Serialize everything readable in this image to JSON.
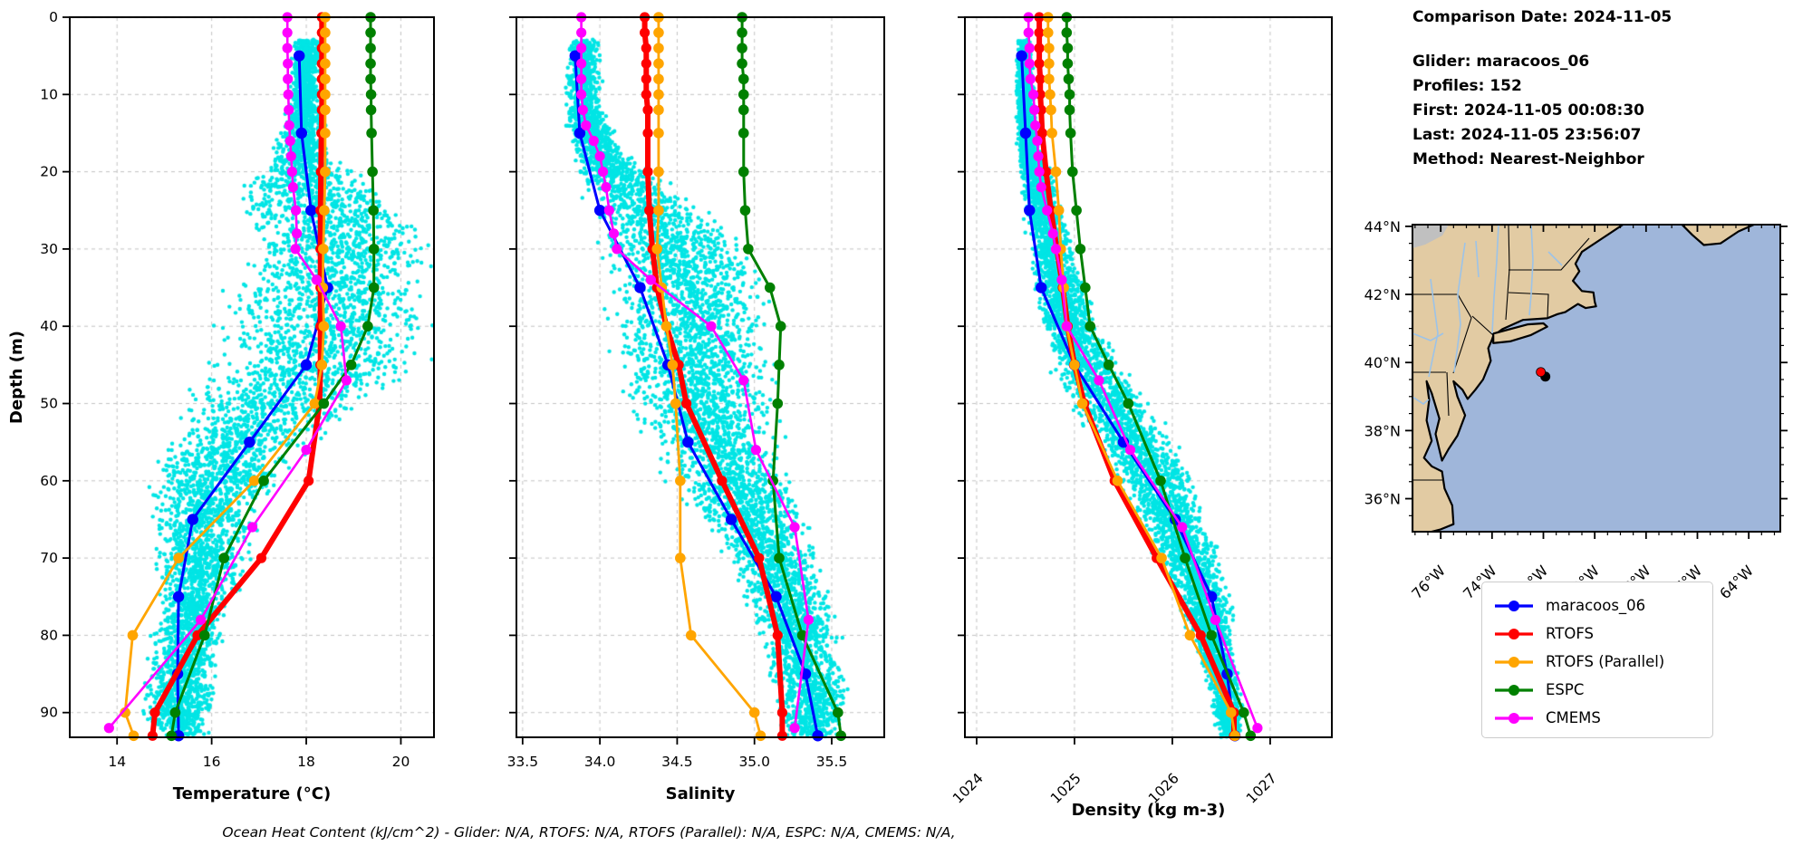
{
  "info_panel": {
    "comparison_date": "Comparison Date: 2024-11-05",
    "glider": "Glider: maracoos_06",
    "profiles": "Profiles: 152",
    "first": "First: 2024-11-05 00:08:30",
    "last": "Last: 2024-11-05 23:56:07",
    "method": "Method: Nearest-Neighbor"
  },
  "footer": "Ocean Heat Content (kJ/cm^2) - Glider: N/A,  RTOFS: N/A,  RTOFS (Parallel): N/A,  ESPC: N/A,  CMEMS: N/A,",
  "legend": {
    "items": [
      {
        "label": "maracoos_06",
        "color": "#0000ff"
      },
      {
        "label": "RTOFS",
        "color": "#ff0000"
      },
      {
        "label": "RTOFS (Parallel)",
        "color": "#ffa500"
      },
      {
        "label": "ESPC",
        "color": "#008000"
      },
      {
        "label": "CMEMS",
        "color": "#ff00ff"
      }
    ]
  },
  "colors": {
    "glider": "#0000ff",
    "rtofs": "#ff0000",
    "rtofs_parallel": "#ffa500",
    "espc": "#008000",
    "cmems": "#ff00ff",
    "scatter": "#00e5e5",
    "grid": "#c3c3c3",
    "land": "#e2cba3",
    "ocean": "#9fb6da",
    "lake_gray": "#c0c0c0",
    "river": "#9cc3e8"
  },
  "map": {
    "lat_tick_labels": [
      "44°N",
      "42°N",
      "40°N",
      "38°N",
      "36°N"
    ],
    "lat_tick_values": [
      44,
      42,
      40,
      38,
      36
    ],
    "lon_tick_labels": [
      "76°W",
      "74°W",
      "72°W",
      "70°W",
      "68°W",
      "66°W",
      "64°W"
    ],
    "lon_tick_values": [
      -76,
      -74,
      -72,
      -70,
      -68,
      -66,
      -64
    ],
    "extent": {
      "lon_min": -77.1,
      "lon_max": -62.77,
      "lat_min": 35.03,
      "lat_max": 44.05
    },
    "glider_marker": {
      "lon": -72.1,
      "lat": 39.72
    }
  },
  "chart_data": [
    {
      "type": "scatter",
      "xlabel": "Temperature (°C)",
      "ylabel": "Depth (m)",
      "xlim": [
        13.0,
        20.7
      ],
      "ylim": [
        0,
        93.2
      ],
      "xticks": [
        14,
        16,
        18,
        20
      ],
      "xtick_labels": [
        "14",
        "16",
        "18",
        "20"
      ],
      "yticks": [
        0,
        10,
        20,
        30,
        40,
        50,
        60,
        70,
        80,
        90
      ],
      "ytick_labels": [
        "0",
        "10",
        "20",
        "30",
        "40",
        "50",
        "60",
        "70",
        "80",
        "90"
      ],
      "rotate_xticks": false,
      "grid": true,
      "scatter_envelope": [
        [
          3,
          17.7,
          18.25
        ],
        [
          12,
          17.55,
          18.25
        ],
        [
          18,
          17.2,
          18.4
        ],
        [
          22,
          16.2,
          19.4
        ],
        [
          26,
          16.4,
          20.0
        ],
        [
          30,
          16.6,
          20.3
        ],
        [
          35,
          16.0,
          20.3
        ],
        [
          40,
          15.8,
          20.25
        ],
        [
          45,
          15.6,
          20.0
        ],
        [
          48,
          15.3,
          19.5
        ],
        [
          52,
          15.0,
          18.6
        ],
        [
          56,
          14.7,
          17.8
        ],
        [
          60,
          14.5,
          17.2
        ],
        [
          65,
          14.6,
          16.8
        ],
        [
          70,
          14.7,
          16.6
        ],
        [
          75,
          14.75,
          16.4
        ],
        [
          80,
          14.6,
          16.1
        ],
        [
          85,
          14.5,
          16.0
        ],
        [
          90,
          14.4,
          16.0
        ],
        [
          93,
          14.8,
          15.8
        ]
      ],
      "series": [
        {
          "name": "maracoos_06",
          "depths": [
            5,
            15,
            25,
            35,
            45,
            55,
            65,
            75,
            85,
            93
          ],
          "values": [
            17.85,
            17.9,
            18.1,
            18.45,
            18.0,
            16.8,
            15.6,
            15.3,
            15.28,
            15.3
          ]
        },
        {
          "name": "RTOFS",
          "depths": [
            0,
            2,
            4,
            6,
            8,
            10,
            12,
            15,
            20,
            25,
            30,
            35,
            40,
            45,
            50,
            60,
            70,
            80,
            90,
            93
          ],
          "values": [
            18.33,
            18.33,
            18.33,
            18.33,
            18.33,
            18.33,
            18.33,
            18.32,
            18.31,
            18.3,
            18.3,
            18.3,
            18.3,
            18.3,
            18.28,
            18.05,
            17.05,
            15.7,
            14.8,
            14.75
          ]
        },
        {
          "name": "RTOFS (Parallel)",
          "depths": [
            0,
            2,
            4,
            6,
            8,
            10,
            12,
            15,
            20,
            25,
            30,
            35,
            40,
            45,
            50,
            60,
            70,
            80,
            90,
            93
          ],
          "values": [
            18.4,
            18.4,
            18.4,
            18.4,
            18.4,
            18.4,
            18.4,
            18.4,
            18.4,
            18.38,
            18.36,
            18.35,
            18.37,
            18.33,
            18.18,
            16.9,
            15.3,
            14.33,
            14.17,
            14.35
          ]
        },
        {
          "name": "ESPC",
          "depths": [
            0,
            2,
            4,
            6,
            8,
            10,
            12,
            15,
            20,
            25,
            30,
            35,
            40,
            45,
            50,
            60,
            70,
            80,
            90,
            93
          ],
          "values": [
            19.36,
            19.36,
            19.36,
            19.36,
            19.36,
            19.37,
            19.37,
            19.38,
            19.4,
            19.42,
            19.43,
            19.43,
            19.3,
            18.95,
            18.37,
            17.1,
            16.26,
            15.85,
            15.23,
            15.15
          ]
        },
        {
          "name": "CMEMS",
          "depths": [
            0,
            2,
            4,
            6,
            8,
            10,
            12,
            14,
            16,
            18,
            20,
            22,
            25,
            28,
            30,
            34,
            40,
            47,
            56,
            66,
            78,
            92
          ],
          "values": [
            17.6,
            17.6,
            17.6,
            17.61,
            17.61,
            17.62,
            17.63,
            17.64,
            17.66,
            17.68,
            17.7,
            17.72,
            17.78,
            17.8,
            17.77,
            18.22,
            18.73,
            18.85,
            18.0,
            16.86,
            15.77,
            13.83
          ]
        }
      ]
    },
    {
      "type": "scatter",
      "xlabel": "Salinity",
      "ylabel": "",
      "xlim": [
        33.46,
        35.84
      ],
      "ylim": [
        0,
        93.2
      ],
      "xticks": [
        33.5,
        34.0,
        34.5,
        35.0,
        35.5
      ],
      "xtick_labels": [
        "33.5",
        "34.0",
        "34.5",
        "35.0",
        "35.5"
      ],
      "yticks": [
        0,
        10,
        20,
        30,
        40,
        50,
        60,
        70,
        80,
        90
      ],
      "ytick_labels": [],
      "rotate_xticks": false,
      "grid": true,
      "scatter_envelope": [
        [
          3,
          33.78,
          33.98
        ],
        [
          12,
          33.75,
          34.0
        ],
        [
          18,
          33.8,
          34.15
        ],
        [
          22,
          33.85,
          34.45
        ],
        [
          25,
          33.9,
          34.6
        ],
        [
          30,
          33.95,
          34.9
        ],
        [
          35,
          34.0,
          35.0
        ],
        [
          40,
          34.0,
          35.05
        ],
        [
          45,
          34.05,
          35.05
        ],
        [
          50,
          34.1,
          35.05
        ],
        [
          55,
          34.25,
          35.1
        ],
        [
          60,
          34.4,
          35.2
        ],
        [
          65,
          34.6,
          35.3
        ],
        [
          70,
          34.75,
          35.35
        ],
        [
          75,
          34.9,
          35.45
        ],
        [
          80,
          35.0,
          35.5
        ],
        [
          85,
          35.05,
          35.55
        ],
        [
          88,
          35.1,
          35.6
        ],
        [
          93,
          35.15,
          35.5
        ]
      ],
      "series": [
        {
          "name": "maracoos_06",
          "depths": [
            5,
            15,
            25,
            35,
            45,
            55,
            65,
            75,
            85,
            93
          ],
          "values": [
            33.84,
            33.87,
            34.0,
            34.26,
            34.44,
            34.57,
            34.85,
            35.14,
            35.33,
            35.41
          ]
        },
        {
          "name": "RTOFS",
          "depths": [
            0,
            2,
            4,
            6,
            8,
            10,
            12,
            15,
            20,
            25,
            30,
            35,
            40,
            45,
            50,
            60,
            70,
            80,
            90,
            93
          ],
          "values": [
            34.29,
            34.29,
            34.3,
            34.3,
            34.3,
            34.3,
            34.31,
            34.31,
            34.31,
            34.32,
            34.34,
            34.37,
            34.43,
            34.51,
            34.56,
            34.79,
            35.03,
            35.15,
            35.18,
            35.18
          ]
        },
        {
          "name": "RTOFS (Parallel)",
          "depths": [
            0,
            2,
            4,
            6,
            8,
            10,
            12,
            15,
            20,
            25,
            30,
            35,
            40,
            45,
            50,
            60,
            70,
            80,
            90,
            93
          ],
          "values": [
            34.38,
            34.38,
            34.38,
            34.38,
            34.38,
            34.38,
            34.38,
            34.38,
            34.38,
            34.38,
            34.37,
            34.4,
            34.43,
            34.47,
            34.49,
            34.52,
            34.52,
            34.59,
            35.0,
            35.04
          ]
        },
        {
          "name": "ESPC",
          "depths": [
            0,
            2,
            4,
            6,
            8,
            10,
            12,
            15,
            20,
            25,
            30,
            35,
            40,
            45,
            50,
            60,
            70,
            80,
            90,
            93
          ],
          "values": [
            34.92,
            34.92,
            34.92,
            34.92,
            34.93,
            34.93,
            34.93,
            34.93,
            34.93,
            34.94,
            34.96,
            35.1,
            35.17,
            35.16,
            35.15,
            35.12,
            35.16,
            35.31,
            35.54,
            35.56
          ]
        },
        {
          "name": "CMEMS",
          "depths": [
            0,
            2,
            4,
            6,
            8,
            10,
            12,
            14,
            16,
            18,
            20,
            22,
            25,
            28,
            30,
            34,
            40,
            47,
            56,
            66,
            78,
            92
          ],
          "values": [
            33.88,
            33.88,
            33.88,
            33.88,
            33.88,
            33.88,
            33.89,
            33.91,
            33.96,
            34.0,
            34.02,
            34.04,
            34.06,
            34.09,
            34.11,
            34.33,
            34.72,
            34.93,
            35.01,
            35.26,
            35.35,
            35.26
          ]
        }
      ]
    },
    {
      "type": "scatter",
      "xlabel": "Density (kg m-3)",
      "ylabel": "",
      "xlim": [
        1023.88,
        1027.63
      ],
      "ylim": [
        0,
        93.2
      ],
      "xticks": [
        1024,
        1025,
        1026,
        1027
      ],
      "xtick_labels": [
        "1024",
        "1025",
        "1026",
        "1027"
      ],
      "yticks": [
        0,
        10,
        20,
        30,
        40,
        50,
        60,
        70,
        80,
        90
      ],
      "ytick_labels": [],
      "rotate_xticks": true,
      "grid": true,
      "scatter_envelope": [
        [
          3,
          1024.4,
          1024.55
        ],
        [
          12,
          1024.38,
          1024.58
        ],
        [
          18,
          1024.4,
          1024.65
        ],
        [
          22,
          1024.42,
          1024.8
        ],
        [
          25,
          1024.45,
          1024.85
        ],
        [
          30,
          1024.5,
          1024.95
        ],
        [
          35,
          1024.55,
          1025.05
        ],
        [
          40,
          1024.6,
          1025.2
        ],
        [
          45,
          1024.7,
          1025.45
        ],
        [
          50,
          1024.9,
          1025.7
        ],
        [
          55,
          1025.15,
          1025.95
        ],
        [
          60,
          1025.4,
          1026.15
        ],
        [
          65,
          1025.6,
          1026.3
        ],
        [
          70,
          1025.8,
          1026.45
        ],
        [
          75,
          1026.0,
          1026.55
        ],
        [
          80,
          1026.15,
          1026.6
        ],
        [
          85,
          1026.3,
          1026.65
        ],
        [
          90,
          1026.4,
          1026.7
        ],
        [
          93,
          1026.45,
          1026.7
        ]
      ],
      "series": [
        {
          "name": "maracoos_06",
          "depths": [
            5,
            15,
            25,
            35,
            45,
            55,
            65,
            75,
            85,
            93
          ],
          "values": [
            1024.46,
            1024.5,
            1024.54,
            1024.66,
            1025.0,
            1025.5,
            1026.03,
            1026.4,
            1026.56,
            1026.64
          ]
        },
        {
          "name": "RTOFS",
          "depths": [
            0,
            2,
            4,
            6,
            8,
            10,
            12,
            15,
            20,
            25,
            30,
            35,
            40,
            45,
            50,
            60,
            70,
            80,
            90,
            93
          ],
          "values": [
            1024.64,
            1024.64,
            1024.64,
            1024.64,
            1024.65,
            1024.65,
            1024.66,
            1024.67,
            1024.71,
            1024.76,
            1024.82,
            1024.88,
            1024.93,
            1025.0,
            1025.1,
            1025.41,
            1025.84,
            1026.29,
            1026.63,
            1026.63
          ]
        },
        {
          "name": "RTOFS (Parallel)",
          "depths": [
            0,
            2,
            4,
            6,
            8,
            10,
            12,
            15,
            20,
            25,
            30,
            35,
            40,
            45,
            50,
            60,
            70,
            80,
            90,
            93
          ],
          "values": [
            1024.73,
            1024.73,
            1024.74,
            1024.74,
            1024.74,
            1024.75,
            1024.76,
            1024.77,
            1024.81,
            1024.84,
            1024.86,
            1024.89,
            1024.92,
            1025.0,
            1025.08,
            1025.44,
            1025.89,
            1026.18,
            1026.6,
            1026.64
          ]
        },
        {
          "name": "ESPC",
          "depths": [
            0,
            2,
            4,
            6,
            8,
            10,
            12,
            15,
            20,
            25,
            30,
            35,
            40,
            45,
            50,
            60,
            70,
            80,
            90,
            93
          ],
          "values": [
            1024.92,
            1024.92,
            1024.93,
            1024.93,
            1024.94,
            1024.95,
            1024.95,
            1024.96,
            1024.98,
            1025.02,
            1025.06,
            1025.11,
            1025.16,
            1025.35,
            1025.55,
            1025.88,
            1026.13,
            1026.4,
            1026.73,
            1026.8
          ]
        },
        {
          "name": "CMEMS",
          "depths": [
            0,
            2,
            4,
            6,
            8,
            10,
            12,
            14,
            16,
            18,
            20,
            22,
            25,
            28,
            30,
            34,
            40,
            47,
            56,
            66,
            78,
            92
          ],
          "values": [
            1024.53,
            1024.53,
            1024.54,
            1024.54,
            1024.55,
            1024.58,
            1024.59,
            1024.6,
            1024.62,
            1024.63,
            1024.64,
            1024.66,
            1024.72,
            1024.78,
            1024.81,
            1024.87,
            1024.92,
            1025.25,
            1025.57,
            1026.1,
            1026.44,
            1026.87
          ]
        }
      ]
    }
  ]
}
